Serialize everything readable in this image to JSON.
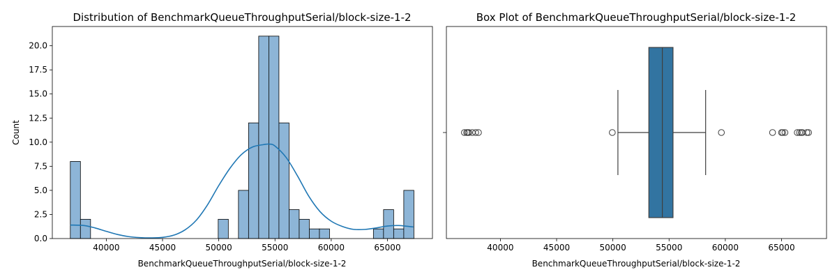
{
  "chart_data": [
    {
      "type": "histogram",
      "title": "Distribution of BenchmarkQueueThroughputSerial/block-size-1-2",
      "xlabel": "BenchmarkQueueThroughputSerial/block-size-1-2",
      "ylabel": "Count",
      "xlim": [
        35200,
        69000
      ],
      "ylim": [
        0,
        22
      ],
      "xticks": [
        "40000",
        "45000",
        "50000",
        "55000",
        "60000",
        "65000"
      ],
      "xtick_values": [
        40000,
        45000,
        50000,
        55000,
        60000,
        65000
      ],
      "yticks": [
        "0.0",
        "2.5",
        "5.0",
        "7.5",
        "10.0",
        "12.5",
        "15.0",
        "17.5",
        "20.0"
      ],
      "ytick_values": [
        0,
        2.5,
        5,
        7.5,
        10,
        12.5,
        15,
        17.5,
        20
      ],
      "bins": [
        {
          "x0": 36800,
          "x1": 37700,
          "count": 8
        },
        {
          "x0": 37700,
          "x1": 38600,
          "count": 2
        },
        {
          "x0": 49950,
          "x1": 50850,
          "count": 2
        },
        {
          "x0": 51750,
          "x1": 52650,
          "count": 5
        },
        {
          "x0": 52650,
          "x1": 53550,
          "count": 12
        },
        {
          "x0": 53550,
          "x1": 54450,
          "count": 21
        },
        {
          "x0": 54450,
          "x1": 55350,
          "count": 21
        },
        {
          "x0": 55350,
          "x1": 56250,
          "count": 12
        },
        {
          "x0": 56250,
          "x1": 57150,
          "count": 3
        },
        {
          "x0": 57150,
          "x1": 58050,
          "count": 2
        },
        {
          "x0": 58050,
          "x1": 58950,
          "count": 1
        },
        {
          "x0": 58950,
          "x1": 59850,
          "count": 1
        },
        {
          "x0": 63750,
          "x1": 64650,
          "count": 1
        },
        {
          "x0": 64650,
          "x1": 65550,
          "count": 3
        },
        {
          "x0": 65550,
          "x1": 66450,
          "count": 1
        },
        {
          "x0": 66450,
          "x1": 67350,
          "count": 5
        }
      ],
      "kde": {
        "x": [
          36800,
          38000,
          39000,
          40000,
          41000,
          42000,
          43000,
          44000,
          45000,
          46000,
          47000,
          48000,
          49000,
          50000,
          51000,
          52000,
          53000,
          54000,
          54500,
          55000,
          56000,
          57000,
          58000,
          59000,
          60000,
          61000,
          62000,
          63000,
          64000,
          65000,
          66000,
          67300
        ],
        "y": [
          1.4,
          1.35,
          1.1,
          0.75,
          0.42,
          0.2,
          0.1,
          0.07,
          0.12,
          0.35,
          0.9,
          1.9,
          3.5,
          5.5,
          7.3,
          8.7,
          9.5,
          9.75,
          9.8,
          9.6,
          8.4,
          6.5,
          4.4,
          2.8,
          1.8,
          1.25,
          0.95,
          0.95,
          1.1,
          1.3,
          1.35,
          1.2
        ]
      },
      "colors": {
        "bar_fill": "#8db5d7",
        "bar_edge": "#000000",
        "kde": "#1f77b4"
      }
    },
    {
      "type": "box",
      "title": "Box Plot of BenchmarkQueueThroughputSerial/block-size-1-2",
      "xlabel": "BenchmarkQueueThroughputSerial/block-size-1-2",
      "xlim": [
        35200,
        69000
      ],
      "xticks": [
        "40000",
        "45000",
        "50000",
        "55000",
        "60000",
        "65000"
      ],
      "xtick_values": [
        40000,
        45000,
        50000,
        55000,
        60000,
        65000
      ],
      "q1": 53200,
      "median": 54400,
      "q3": 55350,
      "whisker_low": 50450,
      "whisker_high": 58250,
      "outliers": [
        36800,
        37000,
        37100,
        37200,
        37500,
        37800,
        38050,
        49950,
        59650,
        64200,
        65000,
        65100,
        65300,
        66400,
        66600,
        66750,
        66850,
        67250,
        67400
      ],
      "colors": {
        "box_fill": "#3274a1",
        "line": "#3f3f3f"
      }
    }
  ]
}
